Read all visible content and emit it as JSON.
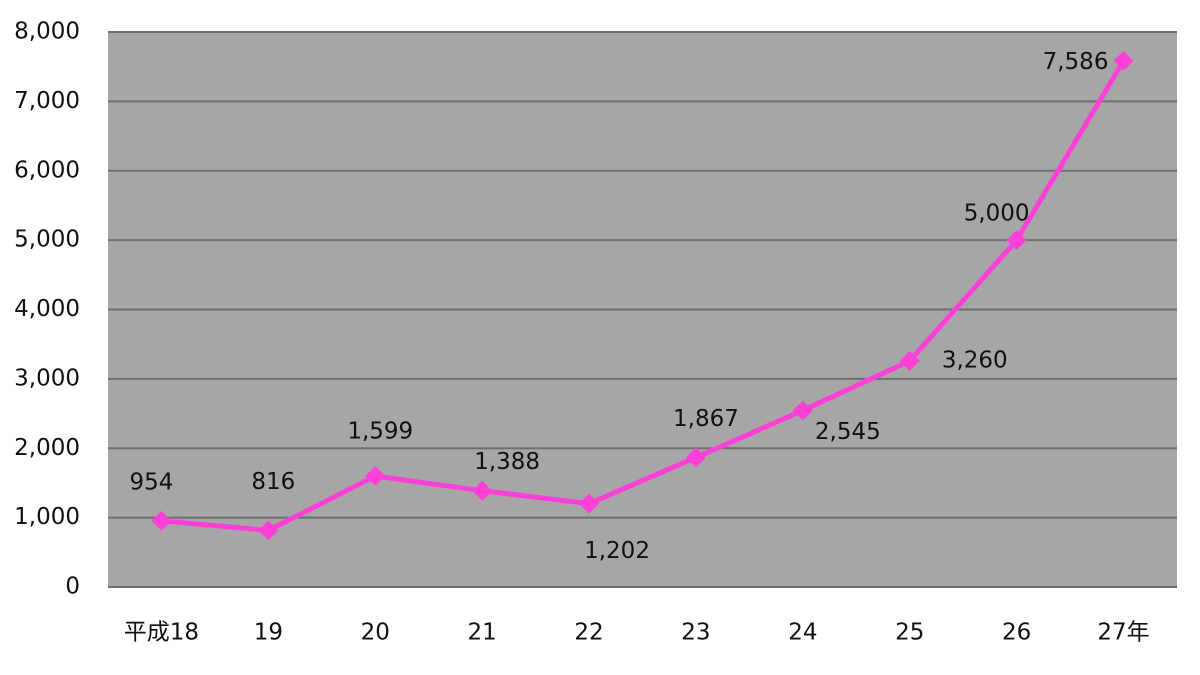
{
  "chart_data": {
    "type": "line",
    "categories": [
      "平成18",
      "19",
      "20",
      "21",
      "22",
      "23",
      "24",
      "25",
      "26",
      "27年"
    ],
    "series": [
      {
        "color": "#ff40d8",
        "values": [
          954,
          816,
          1599,
          1388,
          1202,
          1867,
          2545,
          3260,
          5000,
          7586
        ],
        "value_labels": [
          "954",
          "816",
          "1,599",
          "1,388",
          "1,202",
          "1,867",
          "2,545",
          "3,260",
          "5,000",
          "7,586"
        ]
      }
    ],
    "ylim": [
      0,
      8000
    ],
    "yticks": [
      0,
      {
        "value": 1000,
        "label": "1,000"
      },
      {
        "value": 2000,
        "label": "2,000"
      },
      {
        "value": 3000,
        "label": "3,000"
      },
      {
        "value": 4000,
        "label": "4,000"
      },
      {
        "value": 5000,
        "label": "5,000"
      },
      {
        "value": 6000,
        "label": "6,000"
      },
      {
        "value": 7000,
        "label": "7,000"
      },
      {
        "value": 8000,
        "label": "8,000"
      }
    ],
    "grid": true
  }
}
